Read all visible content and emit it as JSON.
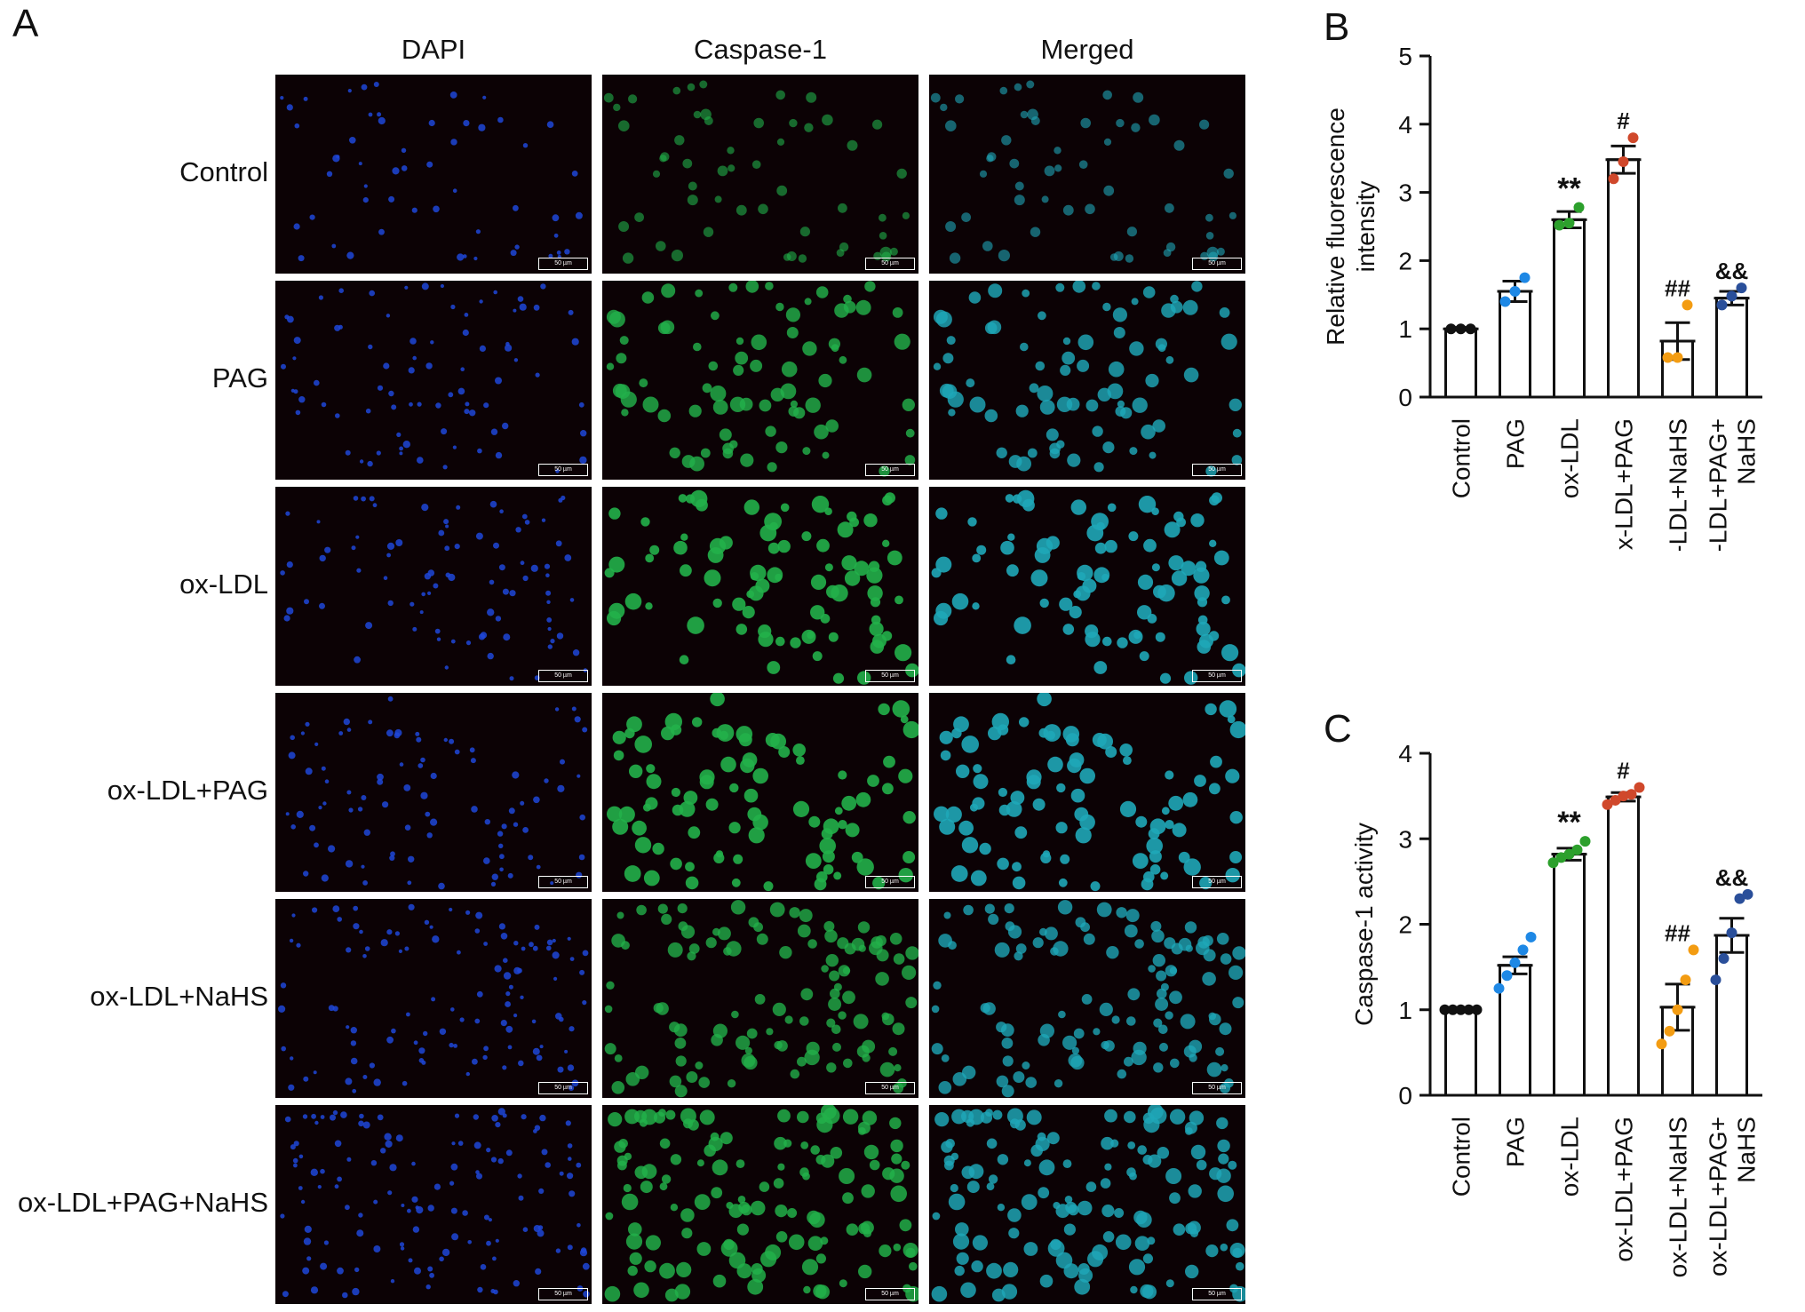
{
  "panel_a": {
    "letter": "A",
    "columns": [
      "DAPI",
      "Caspase-1",
      "Merged"
    ],
    "rows": [
      "Control",
      "PAG",
      "ox-LDL",
      "ox-LDL+PAG",
      "ox-LDL+NaHS",
      "ox-LDL+PAG+NaHS"
    ],
    "scale_bar": "50 µm",
    "channel_colors": {
      "dapi": "#1e46d8",
      "caspase": "#22b04a",
      "merged": "#1fa7b8",
      "background": "#0c0205"
    }
  },
  "chart_data": [
    {
      "type": "bar",
      "letter": "B",
      "ylabel": [
        "Relative fluorescence",
        "intensity"
      ],
      "ylim": [
        0,
        5
      ],
      "yticks": [
        0,
        1,
        2,
        3,
        4,
        5
      ],
      "categories": [
        [
          "Control"
        ],
        [
          "PAG"
        ],
        [
          "ox-LDL"
        ],
        [
          "ox-LDL+PAG"
        ],
        [
          "ox-LDL+NaHS"
        ],
        [
          "ox-LDL+PAG+",
          "NaHS"
        ]
      ],
      "values": [
        1.0,
        1.55,
        2.6,
        3.48,
        0.82,
        1.45
      ],
      "errors": [
        0.02,
        0.15,
        0.12,
        0.2,
        0.27,
        0.1
      ],
      "points": [
        [
          1.0,
          1.0,
          1.0
        ],
        [
          1.4,
          1.55,
          1.75
        ],
        [
          2.52,
          2.55,
          2.78
        ],
        [
          3.2,
          3.45,
          3.8
        ],
        [
          0.58,
          0.58,
          1.35
        ],
        [
          1.35,
          1.48,
          1.6
        ]
      ],
      "annotations": [
        "",
        "",
        "**",
        "#",
        "##",
        "&&"
      ],
      "point_colors": [
        "#111111",
        "#1e88e5",
        "#2ca02c",
        "#d0482b",
        "#f39c12",
        "#2a4f9a"
      ]
    },
    {
      "type": "bar",
      "letter": "C",
      "ylabel": [
        "Caspase-1 activity"
      ],
      "ylim": [
        0,
        4
      ],
      "yticks": [
        0,
        1,
        2,
        3,
        4
      ],
      "categories": [
        [
          "Control"
        ],
        [
          "PAG"
        ],
        [
          "ox-LDL"
        ],
        [
          "ox-LDL+PAG"
        ],
        [
          "ox-LDL+NaHS"
        ],
        [
          "ox-LDL+PAG+",
          "NaHS"
        ]
      ],
      "values": [
        1.0,
        1.52,
        2.82,
        3.49,
        1.03,
        1.87
      ],
      "errors": [
        0.02,
        0.1,
        0.07,
        0.05,
        0.27,
        0.2
      ],
      "points": [
        [
          1.0,
          1.0,
          1.0,
          1.0,
          1.0
        ],
        [
          1.25,
          1.4,
          1.55,
          1.7,
          1.85
        ],
        [
          2.72,
          2.78,
          2.82,
          2.87,
          2.97
        ],
        [
          3.4,
          3.45,
          3.5,
          3.52,
          3.6
        ],
        [
          0.6,
          0.75,
          1.0,
          1.35,
          1.7
        ],
        [
          1.35,
          1.6,
          1.9,
          2.3,
          2.35
        ]
      ],
      "annotations": [
        "",
        "",
        "**",
        "#",
        "##",
        "&&"
      ],
      "point_colors": [
        "#111111",
        "#1e88e5",
        "#2ca02c",
        "#d0482b",
        "#f39c12",
        "#2a4f9a"
      ]
    }
  ]
}
